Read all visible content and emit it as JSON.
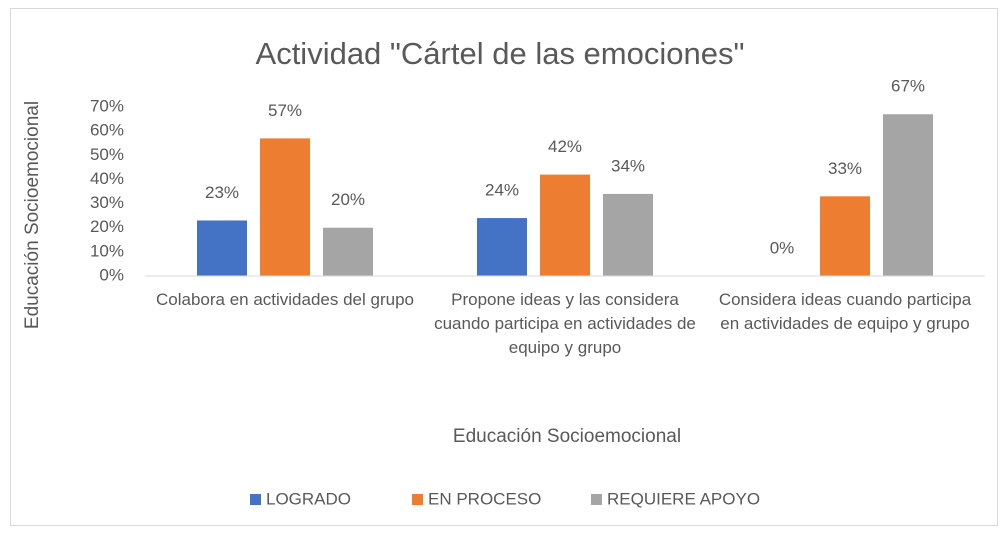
{
  "chart_data": {
    "type": "bar",
    "title": "Actividad \"Cártel de las emociones\"",
    "x_label": "Educación Socioemocional",
    "y_label": "Educación Socioemocional",
    "categories": [
      "Colabora en actividades del grupo",
      "Propone ideas y las considera cuando participa en actividades de equipo y grupo",
      "Considera ideas cuando participa en actividades de equipo y grupo"
    ],
    "series": [
      {
        "name": "LOGRADO",
        "color": "#4472c4",
        "values": [
          23,
          24,
          0
        ],
        "value_labels": [
          "23%",
          "24%",
          "0%"
        ]
      },
      {
        "name": "EN PROCESO",
        "color": "#ed7d31",
        "values": [
          57,
          42,
          33
        ],
        "value_labels": [
          "57%",
          "42%",
          "33%"
        ]
      },
      {
        "name": "REQUIERE APOYO",
        "color": "#a5a5a5",
        "values": [
          20,
          34,
          67
        ],
        "value_labels": [
          "20%",
          "34%",
          "67%"
        ]
      }
    ],
    "ylim": [
      0,
      70
    ],
    "yticks": [
      {
        "value": 0,
        "label": "0%"
      },
      {
        "value": 10,
        "label": "10%"
      },
      {
        "value": 20,
        "label": "20%"
      },
      {
        "value": 30,
        "label": "30%"
      },
      {
        "value": 40,
        "label": "40%"
      },
      {
        "value": 50,
        "label": "50%"
      },
      {
        "value": 60,
        "label": "60%"
      },
      {
        "value": 70,
        "label": "70%"
      }
    ],
    "grid": false,
    "legend": "bottom"
  }
}
